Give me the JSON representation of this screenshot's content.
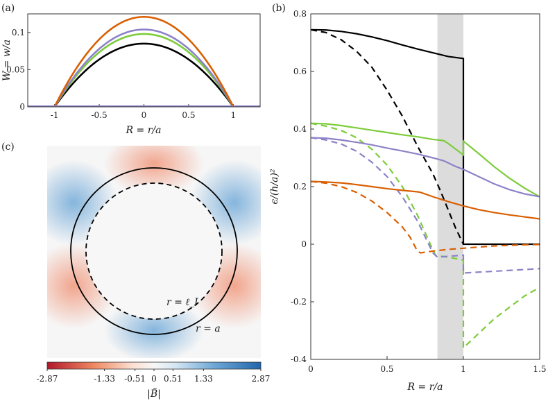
{
  "colors": {
    "black": "#000000",
    "orange": "#d95f02",
    "purple": "#8c82c8",
    "green": "#7ccc3a",
    "shade": "#dcdcdc",
    "cmap_neg": "#b2182b",
    "cmap_mid": "#f7f7f7",
    "cmap_pos": "#2166ac"
  },
  "chart_data": [
    {
      "panel": "(a)",
      "type": "line",
      "xlabel": "R = r/a",
      "ylabel": "W = w/a",
      "xlim": [
        -1.3,
        1.3
      ],
      "ylim": [
        0,
        0.125
      ],
      "xticks": [
        -1,
        -0.5,
        0,
        0.5,
        1
      ],
      "xtick_labels": [
        "-1",
        "-0.5",
        "0",
        "0.5",
        "1"
      ],
      "yticks": [
        0,
        0.05,
        0.1
      ],
      "ytick_labels": [
        "0",
        "0.05",
        "0.1"
      ],
      "series": [
        {
          "name": "black",
          "color": "#000000",
          "peak": 0.085
        },
        {
          "name": "green",
          "color": "#7ccc3a",
          "peak": 0.098
        },
        {
          "name": "purple",
          "color": "#8c82c8",
          "peak": 0.104
        },
        {
          "name": "orange",
          "color": "#d95f02",
          "peak": 0.121
        }
      ]
    },
    {
      "panel": "(b)",
      "type": "line",
      "xlabel": "R = r/a",
      "ylabel": "ϵ/(h/a)²",
      "xlim": [
        0,
        1.5
      ],
      "ylim": [
        -0.4,
        0.8
      ],
      "xticks": [
        0,
        0.5,
        1,
        1.5
      ],
      "xtick_labels": [
        "0",
        "0.5",
        "1",
        "1.5"
      ],
      "yticks": [
        -0.4,
        -0.2,
        0,
        0.2,
        0.4,
        0.6,
        0.8
      ],
      "ytick_labels": [
        "-0.4",
        "-0.2",
        "0",
        "0.2",
        "0.4",
        "0.6",
        "0.8"
      ],
      "shaded_region": [
        0.83,
        1.0
      ],
      "series": [
        {
          "name": "black-solid",
          "color": "#000000",
          "dash": false,
          "points": [
            [
              0,
              0.745
            ],
            [
              0.1,
              0.744
            ],
            [
              0.2,
              0.739
            ],
            [
              0.3,
              0.731
            ],
            [
              0.4,
              0.72
            ],
            [
              0.5,
              0.707
            ],
            [
              0.6,
              0.692
            ],
            [
              0.7,
              0.678
            ],
            [
              0.8,
              0.665
            ],
            [
              0.9,
              0.652
            ],
            [
              0.999,
              0.645
            ],
            [
              1.0,
              0.645
            ],
            [
              1.0,
              0.0
            ],
            [
              1.5,
              0.0
            ]
          ]
        },
        {
          "name": "black-dashed",
          "color": "#000000",
          "dash": true,
          "points": [
            [
              0,
              0.745
            ],
            [
              0.1,
              0.735
            ],
            [
              0.2,
              0.71
            ],
            [
              0.3,
              0.67
            ],
            [
              0.4,
              0.615
            ],
            [
              0.5,
              0.535
            ],
            [
              0.6,
              0.445
            ],
            [
              0.7,
              0.34
            ],
            [
              0.8,
              0.245
            ],
            [
              0.85,
              0.185
            ],
            [
              0.9,
              0.12
            ],
            [
              0.95,
              0.055
            ],
            [
              1.0,
              0.0
            ]
          ]
        },
        {
          "name": "green-solid",
          "color": "#7ccc3a",
          "dash": false,
          "points": [
            [
              0,
              0.42
            ],
            [
              0.1,
              0.418
            ],
            [
              0.2,
              0.412
            ],
            [
              0.3,
              0.404
            ],
            [
              0.4,
              0.396
            ],
            [
              0.5,
              0.388
            ],
            [
              0.6,
              0.38
            ],
            [
              0.7,
              0.373
            ],
            [
              0.8,
              0.364
            ],
            [
              0.87,
              0.36
            ],
            [
              0.9,
              0.35
            ],
            [
              0.95,
              0.33
            ],
            [
              1.0,
              0.31
            ],
            [
              1.0,
              0.358
            ],
            [
              1.1,
              0.315
            ],
            [
              1.2,
              0.27
            ],
            [
              1.3,
              0.23
            ],
            [
              1.4,
              0.195
            ],
            [
              1.5,
              0.165
            ]
          ]
        },
        {
          "name": "green-dashed",
          "color": "#7ccc3a",
          "dash": true,
          "points": [
            [
              0,
              0.42
            ],
            [
              0.1,
              0.41
            ],
            [
              0.2,
              0.395
            ],
            [
              0.3,
              0.37
            ],
            [
              0.4,
              0.33
            ],
            [
              0.5,
              0.275
            ],
            [
              0.6,
              0.2
            ],
            [
              0.7,
              0.1
            ],
            [
              0.75,
              0.04
            ],
            [
              0.8,
              -0.02
            ],
            [
              0.82,
              -0.04
            ],
            [
              0.83,
              -0.04
            ],
            [
              0.9,
              -0.045
            ],
            [
              0.95,
              -0.05
            ],
            [
              1.0,
              -0.055
            ],
            [
              1.0,
              -0.36
            ],
            [
              1.1,
              -0.31
            ],
            [
              1.2,
              -0.26
            ],
            [
              1.3,
              -0.22
            ],
            [
              1.4,
              -0.18
            ],
            [
              1.5,
              -0.15
            ]
          ]
        },
        {
          "name": "purple-solid",
          "color": "#8c82c8",
          "dash": false,
          "points": [
            [
              0,
              0.37
            ],
            [
              0.1,
              0.368
            ],
            [
              0.2,
              0.362
            ],
            [
              0.3,
              0.354
            ],
            [
              0.4,
              0.345
            ],
            [
              0.5,
              0.334
            ],
            [
              0.6,
              0.324
            ],
            [
              0.7,
              0.313
            ],
            [
              0.8,
              0.3
            ],
            [
              0.87,
              0.29
            ],
            [
              0.95,
              0.27
            ],
            [
              1.0,
              0.26
            ],
            [
              1.1,
              0.235
            ],
            [
              1.2,
              0.21
            ],
            [
              1.3,
              0.19
            ],
            [
              1.4,
              0.175
            ],
            [
              1.5,
              0.165
            ]
          ]
        },
        {
          "name": "purple-dashed",
          "color": "#8c82c8",
          "dash": true,
          "points": [
            [
              0,
              0.37
            ],
            [
              0.1,
              0.362
            ],
            [
              0.2,
              0.348
            ],
            [
              0.3,
              0.323
            ],
            [
              0.4,
              0.285
            ],
            [
              0.5,
              0.235
            ],
            [
              0.6,
              0.165
            ],
            [
              0.7,
              0.08
            ],
            [
              0.75,
              0.025
            ],
            [
              0.8,
              -0.03
            ],
            [
              0.83,
              -0.045
            ],
            [
              0.9,
              -0.042
            ],
            [
              0.95,
              -0.04
            ],
            [
              1.0,
              -0.038
            ],
            [
              1.0,
              -0.1
            ],
            [
              1.1,
              -0.097
            ],
            [
              1.2,
              -0.094
            ],
            [
              1.3,
              -0.091
            ],
            [
              1.4,
              -0.088
            ],
            [
              1.5,
              -0.085
            ]
          ]
        },
        {
          "name": "orange-solid",
          "color": "#d95f02",
          "dash": false,
          "points": [
            [
              0,
              0.218
            ],
            [
              0.1,
              0.216
            ],
            [
              0.2,
              0.213
            ],
            [
              0.3,
              0.207
            ],
            [
              0.4,
              0.2
            ],
            [
              0.5,
              0.193
            ],
            [
              0.6,
              0.187
            ],
            [
              0.7,
              0.182
            ],
            [
              0.72,
              0.18
            ],
            [
              0.8,
              0.165
            ],
            [
              0.9,
              0.148
            ],
            [
              1.0,
              0.133
            ],
            [
              1.1,
              0.12
            ],
            [
              1.2,
              0.11
            ],
            [
              1.3,
              0.102
            ],
            [
              1.4,
              0.095
            ],
            [
              1.5,
              0.088
            ]
          ]
        },
        {
          "name": "orange-dashed",
          "color": "#d95f02",
          "dash": true,
          "points": [
            [
              0,
              0.218
            ],
            [
              0.1,
              0.212
            ],
            [
              0.2,
              0.2
            ],
            [
              0.3,
              0.18
            ],
            [
              0.4,
              0.15
            ],
            [
              0.5,
              0.11
            ],
            [
              0.6,
              0.06
            ],
            [
              0.65,
              0.025
            ],
            [
              0.7,
              -0.025
            ],
            [
              0.72,
              -0.03
            ],
            [
              0.8,
              -0.024
            ],
            [
              0.9,
              -0.018
            ],
            [
              1.0,
              -0.014
            ],
            [
              1.1,
              -0.01
            ],
            [
              1.2,
              -0.006
            ],
            [
              1.3,
              -0.004
            ],
            [
              1.4,
              -0.002
            ],
            [
              1.5,
              -0.001
            ]
          ]
        }
      ]
    },
    {
      "panel": "(c)",
      "type": "heatmap",
      "colorbar_label": "|B̃|",
      "colorbar_range": [
        -2.87,
        2.87
      ],
      "colorbar_ticks": [
        -2.87,
        -1.33,
        -0.51,
        0,
        0.51,
        1.33,
        2.87
      ],
      "colorbar_tick_labels": [
        "-2.87",
        "-1.33",
        "-0.51",
        "0",
        "0.51",
        "1.33",
        "2.87"
      ],
      "inner_circle_label": "r = ℓ_I",
      "outer_circle_label": "r = a",
      "inner_radius_over_a": 0.83
    }
  ],
  "panels": {
    "a": "(a)",
    "b": "(b)",
    "c": "(c)"
  }
}
